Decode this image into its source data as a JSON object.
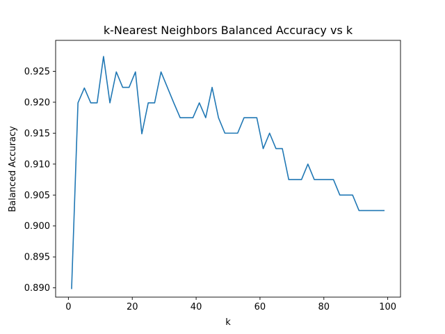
{
  "chart_data": {
    "type": "line",
    "title": "k-Nearest Neighbors Balanced Accuracy vs k",
    "xlabel": "k",
    "ylabel": "Balanced Accuracy",
    "xlim": [
      -4,
      104
    ],
    "ylim": [
      0.8885,
      0.93
    ],
    "xticks": [
      "0",
      "20",
      "40",
      "60",
      "80",
      "100"
    ],
    "yticks": [
      "0.890",
      "0.895",
      "0.900",
      "0.905",
      "0.910",
      "0.915",
      "0.920",
      "0.925"
    ],
    "grid": false,
    "line_color": "#1f77b4",
    "series": [
      {
        "x": [
          1,
          3,
          5,
          7,
          9,
          11,
          13,
          15,
          17,
          19,
          21,
          23,
          25,
          27,
          29,
          31,
          33,
          35,
          37,
          39,
          41,
          43,
          45,
          47,
          49,
          51,
          53,
          55,
          57,
          59,
          61,
          63,
          65,
          67,
          69,
          71,
          73,
          75,
          77,
          79,
          81,
          83,
          85,
          87,
          89,
          91,
          93,
          95,
          97,
          99
        ],
        "values": [
          0.8898,
          0.9199,
          0.9223,
          0.9199,
          0.9199,
          0.9274,
          0.9199,
          0.9249,
          0.9224,
          0.9224,
          0.9249,
          0.9149,
          0.9199,
          0.9199,
          0.9249,
          0.9224,
          0.9199,
          0.9175,
          0.9175,
          0.9175,
          0.9199,
          0.9175,
          0.9224,
          0.9175,
          0.915,
          0.915,
          0.915,
          0.9175,
          0.9175,
          0.9175,
          0.9125,
          0.915,
          0.9125,
          0.9125,
          0.9075,
          0.9075,
          0.9075,
          0.91,
          0.9075,
          0.9075,
          0.9075,
          0.9075,
          0.905,
          0.905,
          0.905,
          0.9025,
          0.9025,
          0.9025,
          0.9025,
          0.9025
        ]
      }
    ]
  }
}
